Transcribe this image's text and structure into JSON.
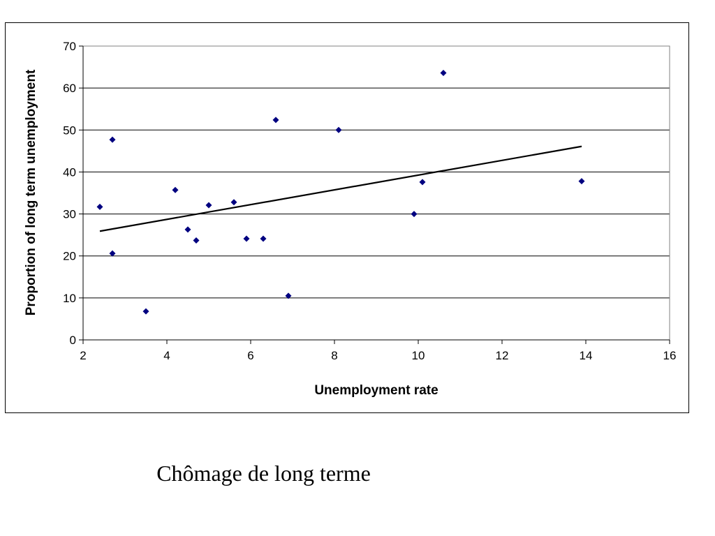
{
  "caption": "Chômage de long terme",
  "chart_data": {
    "type": "scatter",
    "title": "",
    "xlabel": "Unemployment rate",
    "ylabel": "Proportion of long term unemployment",
    "xlim": [
      2,
      16
    ],
    "ylim": [
      0,
      70
    ],
    "xticks": [
      2,
      4,
      6,
      8,
      10,
      12,
      14,
      16
    ],
    "yticks": [
      0,
      10,
      20,
      30,
      40,
      50,
      60,
      70
    ],
    "grid": "horizontal",
    "legend": "none",
    "marker": "diamond",
    "marker_color": "#000080",
    "points": [
      {
        "x": 2.4,
        "y": 31.7
      },
      {
        "x": 2.7,
        "y": 47.7
      },
      {
        "x": 2.7,
        "y": 20.6
      },
      {
        "x": 3.5,
        "y": 6.8
      },
      {
        "x": 4.2,
        "y": 35.7
      },
      {
        "x": 4.5,
        "y": 26.3
      },
      {
        "x": 4.7,
        "y": 23.7
      },
      {
        "x": 5.0,
        "y": 32.1
      },
      {
        "x": 5.6,
        "y": 32.8
      },
      {
        "x": 5.9,
        "y": 24.1
      },
      {
        "x": 6.3,
        "y": 24.1
      },
      {
        "x": 6.6,
        "y": 52.4
      },
      {
        "x": 6.9,
        "y": 10.5
      },
      {
        "x": 8.1,
        "y": 50.0
      },
      {
        "x": 9.9,
        "y": 30.0
      },
      {
        "x": 10.1,
        "y": 37.6
      },
      {
        "x": 10.6,
        "y": 63.6
      },
      {
        "x": 13.9,
        "y": 37.8
      }
    ],
    "trendline": {
      "type": "linear",
      "x": [
        2.4,
        13.9
      ],
      "y": [
        25.9,
        46.1
      ]
    }
  }
}
